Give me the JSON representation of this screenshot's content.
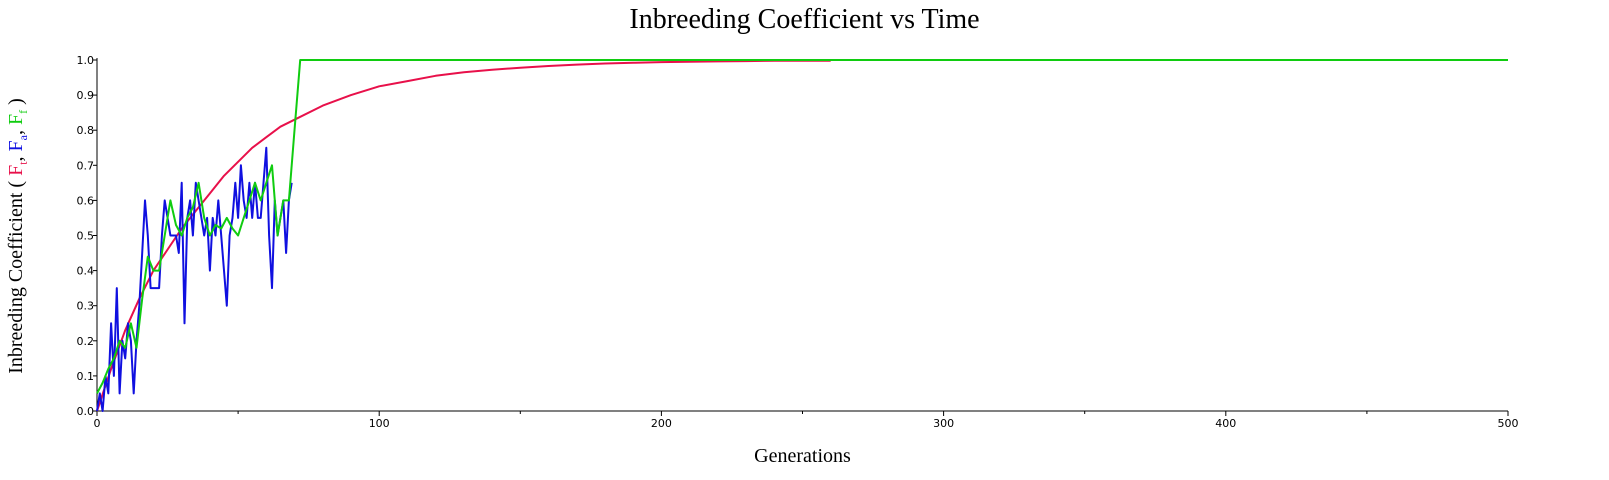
{
  "chart_data": {
    "type": "line",
    "title": "Inbreeding Coefficient vs Time",
    "xlabel": "Generations",
    "ylabel": {
      "prefix": "Inbreeding Coefficient ( ",
      "terms": [
        {
          "base": "F",
          "sub": "t",
          "color": "#e8104a"
        },
        {
          "base": "F",
          "sub": "a",
          "color": "#1010e0"
        },
        {
          "base": "F",
          "sub": "f",
          "color": "#10cc10"
        }
      ],
      "separator": ", ",
      "suffix": " )"
    },
    "xlim": [
      0,
      500
    ],
    "ylim": [
      0,
      1
    ],
    "x_major_ticks": [
      0,
      100,
      200,
      300,
      400,
      500
    ],
    "x_minor_ticks": [
      50,
      150,
      250,
      350,
      450
    ],
    "y_ticks": [
      "0.0",
      "0.1",
      "0.2",
      "0.3",
      "0.4",
      "0.5",
      "0.6",
      "0.7",
      "0.8",
      "0.9",
      "1.0"
    ],
    "grid": false,
    "series": [
      {
        "key": "Ft",
        "color": "#e8104a",
        "x": [
          0,
          5,
          10,
          15,
          20,
          25,
          30,
          35,
          40,
          45,
          50,
          55,
          60,
          65,
          70,
          80,
          90,
          100,
          110,
          120,
          130,
          140,
          150,
          160,
          170,
          180,
          190,
          200,
          210,
          220,
          230,
          240,
          250,
          260
        ],
        "y": [
          0.0,
          0.12,
          0.23,
          0.32,
          0.4,
          0.46,
          0.52,
          0.57,
          0.62,
          0.67,
          0.71,
          0.75,
          0.78,
          0.81,
          0.83,
          0.87,
          0.9,
          0.925,
          0.94,
          0.955,
          0.965,
          0.972,
          0.978,
          0.983,
          0.987,
          0.99,
          0.992,
          0.994,
          0.995,
          0.996,
          0.997,
          0.998,
          0.998,
          0.998
        ]
      },
      {
        "key": "Fa",
        "color": "#1010e0",
        "x": [
          0,
          1,
          2,
          3,
          4,
          5,
          6,
          7,
          8,
          9,
          10,
          11,
          12,
          13,
          14,
          15,
          16,
          17,
          18,
          19,
          20,
          21,
          22,
          23,
          24,
          25,
          26,
          27,
          28,
          29,
          30,
          31,
          32,
          33,
          34,
          35,
          36,
          37,
          38,
          39,
          40,
          41,
          42,
          43,
          44,
          45,
          46,
          47,
          48,
          49,
          50,
          51,
          52,
          53,
          54,
          55,
          56,
          57,
          58,
          59,
          60,
          61,
          62,
          63,
          64,
          65,
          66,
          67,
          68,
          69
        ],
        "y": [
          0.0,
          0.05,
          0.0,
          0.1,
          0.05,
          0.25,
          0.1,
          0.35,
          0.05,
          0.2,
          0.15,
          0.25,
          0.2,
          0.05,
          0.2,
          0.3,
          0.45,
          0.6,
          0.5,
          0.35,
          0.35,
          0.35,
          0.35,
          0.5,
          0.6,
          0.55,
          0.5,
          0.5,
          0.5,
          0.45,
          0.65,
          0.25,
          0.55,
          0.6,
          0.5,
          0.65,
          0.6,
          0.55,
          0.5,
          0.55,
          0.4,
          0.55,
          0.5,
          0.6,
          0.5,
          0.4,
          0.3,
          0.5,
          0.55,
          0.65,
          0.55,
          0.7,
          0.6,
          0.55,
          0.65,
          0.55,
          0.65,
          0.55,
          0.55,
          0.65,
          0.75,
          0.5,
          0.35,
          0.6,
          0.5,
          0.55,
          0.6,
          0.45,
          0.6,
          0.65
        ]
      },
      {
        "key": "Ff",
        "color": "#10cc10",
        "x": [
          0,
          2,
          4,
          6,
          8,
          10,
          12,
          14,
          16,
          18,
          20,
          22,
          24,
          26,
          28,
          30,
          32,
          34,
          36,
          38,
          40,
          42,
          44,
          46,
          48,
          50,
          52,
          54,
          56,
          58,
          60,
          62,
          64,
          66,
          68,
          70,
          72,
          80,
          100,
          150,
          200,
          250,
          300,
          350,
          400,
          450,
          500
        ],
        "y": [
          0.05,
          0.08,
          0.12,
          0.15,
          0.2,
          0.18,
          0.25,
          0.18,
          0.32,
          0.44,
          0.4,
          0.4,
          0.5,
          0.6,
          0.53,
          0.5,
          0.55,
          0.58,
          0.65,
          0.55,
          0.5,
          0.53,
          0.52,
          0.55,
          0.52,
          0.5,
          0.55,
          0.6,
          0.65,
          0.6,
          0.65,
          0.7,
          0.5,
          0.6,
          0.6,
          0.8,
          1.0,
          1.0,
          1.0,
          1.0,
          1.0,
          1.0,
          1.0,
          1.0,
          1.0,
          1.0,
          1.0
        ]
      }
    ]
  }
}
